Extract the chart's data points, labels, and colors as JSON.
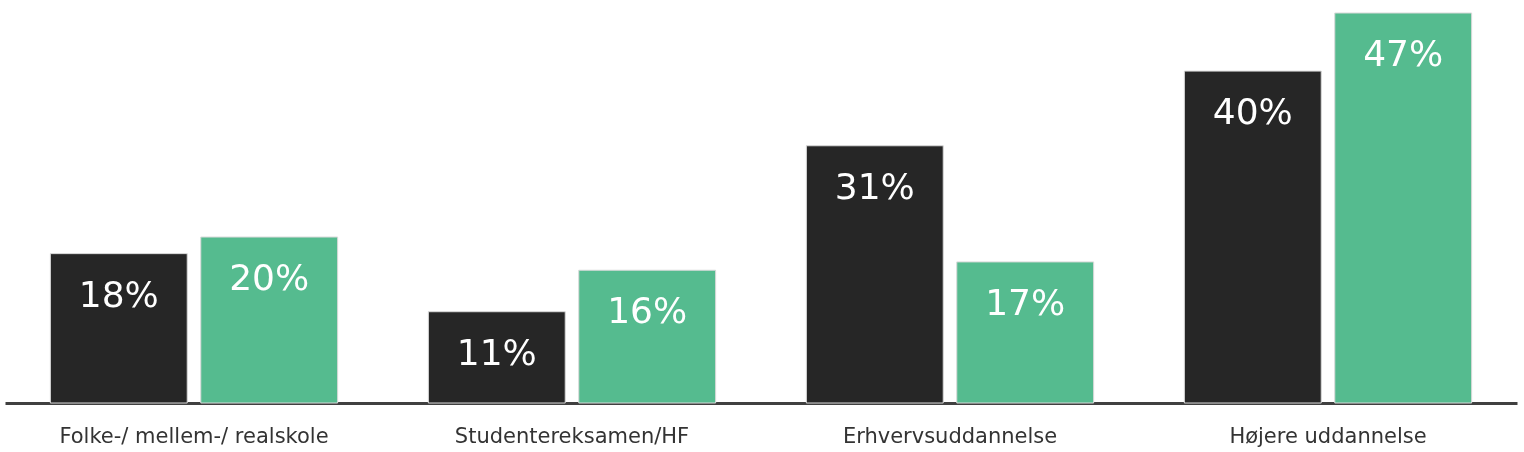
{
  "chart_data": {
    "type": "bar",
    "categories": [
      "Folke-/ mellem-/ realskole",
      "Studentereksamen/HF",
      "Erhvervsuddannelse",
      "Højere uddannelse"
    ],
    "series": [
      {
        "color": "#262626",
        "values": [
          18,
          11,
          31,
          40
        ],
        "value_labels": [
          "18%",
          "11%",
          "31%",
          "40%"
        ]
      },
      {
        "color": "#55bb8f",
        "values": [
          20,
          16,
          17,
          47
        ],
        "value_labels": [
          "20%",
          "16%",
          "17%",
          "47%"
        ]
      }
    ]
  }
}
